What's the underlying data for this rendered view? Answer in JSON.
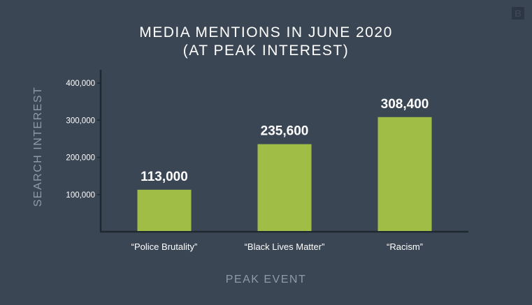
{
  "chart_data": {
    "type": "bar",
    "title_line1": "MEDIA MENTIONS IN JUNE 2020",
    "title_line2": "(AT PEAK INTEREST)",
    "xlabel": "PEAK EVENT",
    "ylabel": "SEARCH INTEREST",
    "categories": [
      "“Police Brutality”",
      "“Black Lives Matter”",
      "“Racism”"
    ],
    "values": [
      113000,
      235600,
      308400
    ],
    "value_labels": [
      "113,000",
      "235,600",
      "308,400"
    ],
    "yticks": [
      100000,
      200000,
      300000,
      400000
    ],
    "ytick_labels": [
      "100,000",
      "200,000",
      "300,000",
      "400,000"
    ],
    "ylim": [
      0,
      400000
    ],
    "grid": false,
    "colors": {
      "bar": "#a0be45",
      "background": "#3a4654",
      "axis": "#1f2730"
    }
  },
  "logo": {
    "text": "B"
  }
}
